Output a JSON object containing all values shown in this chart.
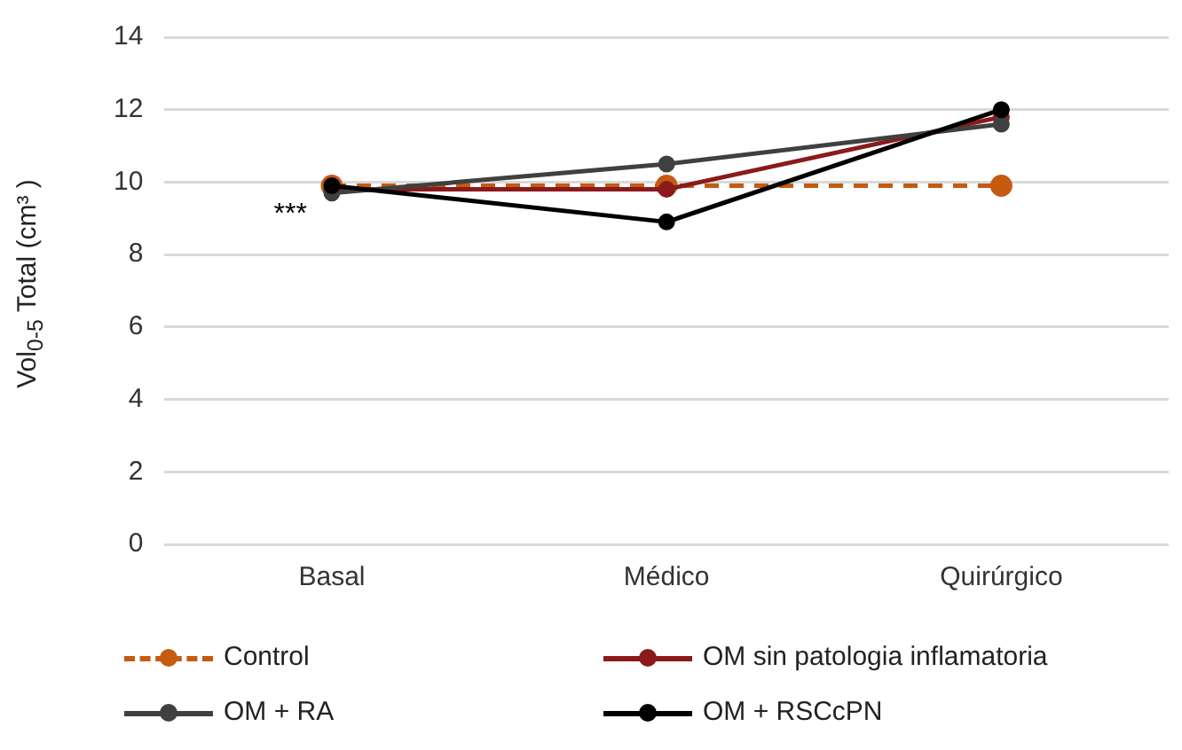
{
  "chart_data": {
    "type": "line",
    "ylabel": "Vol$_{0-5}$ Total (cm³ )",
    "categories": [
      "Basal",
      "Médico",
      "Quirúrgico"
    ],
    "series": [
      {
        "name": "Control",
        "color": "#c55a11",
        "values": [
          9.9,
          9.9,
          9.9
        ],
        "line_style": "dashed"
      },
      {
        "name": "OM sin patologia inflamatoria",
        "color": "#8b1a1a",
        "values": [
          9.8,
          9.8,
          11.8
        ]
      },
      {
        "name": "OM + RA",
        "color": "#404040",
        "values": [
          9.7,
          10.5,
          11.6
        ]
      },
      {
        "name": "OM + RSCcPN",
        "color": "#000000",
        "values": [
          9.9,
          8.9,
          12.0
        ]
      }
    ],
    "ylim": [
      0,
      14
    ],
    "yticks": [
      0,
      2,
      4,
      6,
      8,
      10,
      12,
      14
    ],
    "grid": "y",
    "legend": "bottom",
    "marker": "circle",
    "annotations": [
      {
        "text": "***",
        "x": "Basal",
        "y": 9.3
      }
    ]
  }
}
